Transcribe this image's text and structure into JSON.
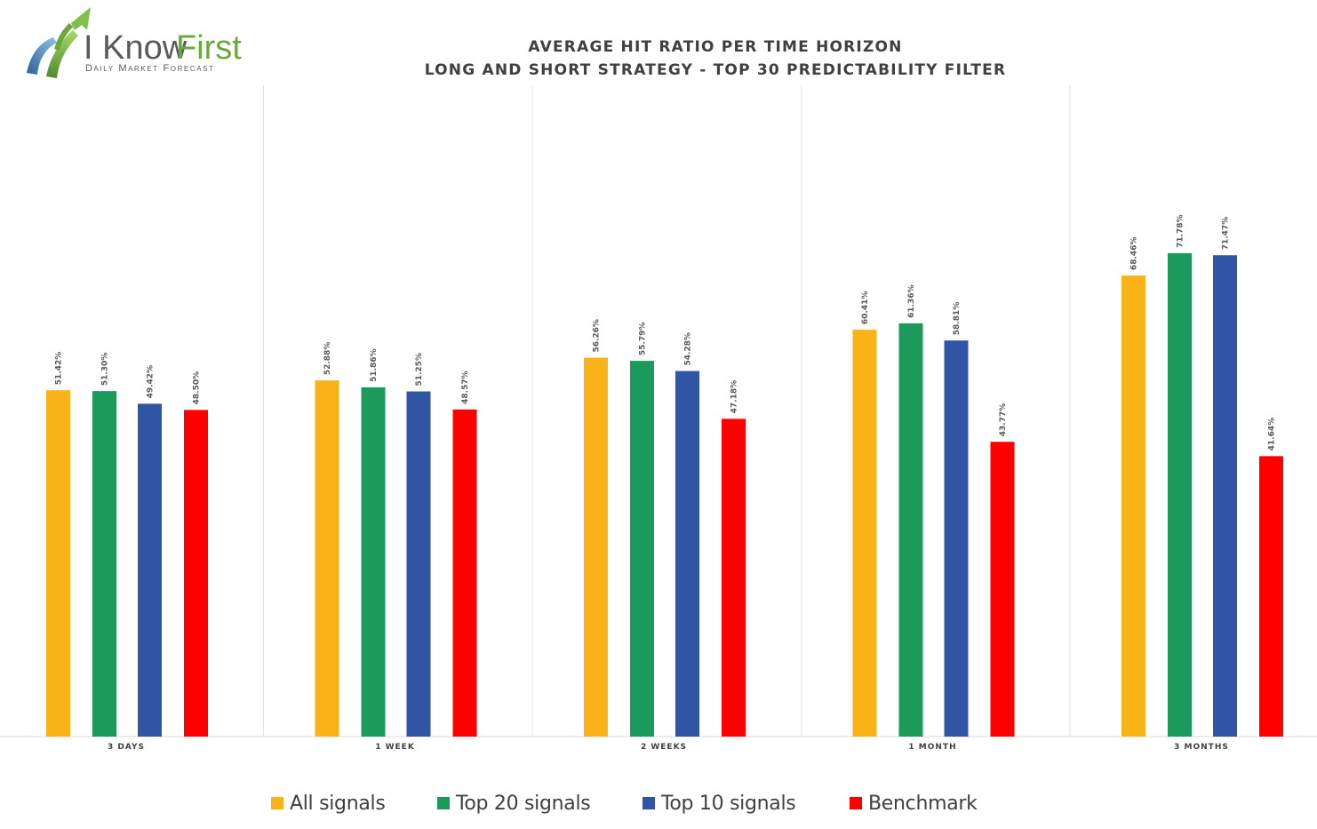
{
  "logo": {
    "name_part1": "I Know",
    "name_part2": "First",
    "tagline": "Daily Market Forecast"
  },
  "chart_data": {
    "type": "bar",
    "title": "AVERAGE HIT RATIO PER TIME HORIZON",
    "subtitle": "LONG AND SHORT STRATEGY - TOP 30 PREDICTABILITY FILTER",
    "categories": [
      "3 DAYS",
      "1 WEEK",
      "2 WEEKS",
      "1 MONTH",
      "3 MONTHS"
    ],
    "series": [
      {
        "name": "All signals",
        "color": "#fab219",
        "values": [
          51.42,
          52.88,
          56.26,
          60.41,
          68.46
        ],
        "labels": [
          "51.42%",
          "52.88%",
          "56.26%",
          "60.41%",
          "68.46%"
        ]
      },
      {
        "name": "Top 20 signals",
        "color": "#1b9a5b",
        "values": [
          51.3,
          51.86,
          55.79,
          61.36,
          71.78
        ],
        "labels": [
          "51.30%",
          "51.86%",
          "55.79%",
          "61.36%",
          "71.78%"
        ]
      },
      {
        "name": "Top 10 signals",
        "color": "#2f55a4",
        "values": [
          49.42,
          51.25,
          54.28,
          58.81,
          71.47
        ],
        "labels": [
          "49.42%",
          "51.25%",
          "54.28%",
          "58.81%",
          "71.47%"
        ]
      },
      {
        "name": "Benchmark",
        "color": "#ff0000",
        "values": [
          48.5,
          48.57,
          47.18,
          43.77,
          41.64
        ],
        "labels": [
          "48.50%",
          "48.57%",
          "47.18%",
          "43.77%",
          "41.64%"
        ]
      }
    ],
    "ylim": [
      0,
      80
    ],
    "grid": false,
    "legend_position": "bottom"
  }
}
